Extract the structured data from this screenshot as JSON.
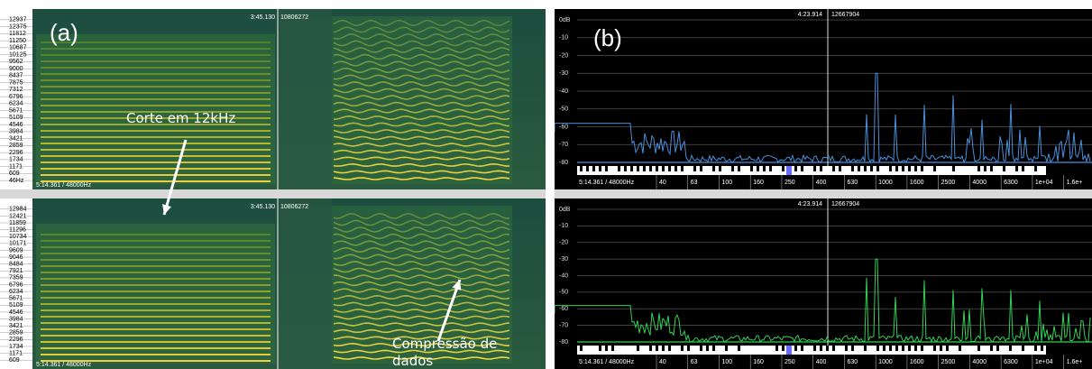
{
  "panel_a": {
    "label": "(a)",
    "top": {
      "freq_labels": [
        "12937",
        "12375",
        "11812",
        "11250",
        "10687",
        "10125",
        "9562",
        "9000",
        "8437",
        "7875",
        "7312",
        "6796",
        "6234",
        "5671",
        "5109",
        "4546",
        "3984",
        "3421",
        "2859",
        "2296",
        "1734",
        "1171",
        "609",
        "46Hz"
      ],
      "time": "3:45.130",
      "samples": "10806272",
      "position": "5:14.361 / 48000Hz"
    },
    "bottom": {
      "freq_labels": [
        "12984",
        "12421",
        "11859",
        "11296",
        "10734",
        "10171",
        "9609",
        "9046",
        "8484",
        "7921",
        "7359",
        "6796",
        "6234",
        "5671",
        "5109",
        "4546",
        "3984",
        "3421",
        "2859",
        "2296",
        "1734",
        "1171",
        "609"
      ],
      "time": "3:45.130",
      "samples": "10806272",
      "position": "5:14.361 / 48000Hz"
    },
    "annotations": {
      "cut": "Corte em 12kHz",
      "compression": "Compressão de dados"
    }
  },
  "panel_b": {
    "label": "(b)",
    "top": {
      "time": "4:23.914",
      "samples": "12667904",
      "db_labels": [
        "0dB",
        "-10",
        "-20",
        "-30",
        "-40",
        "-50",
        "-60",
        "-70",
        "-80"
      ],
      "freq_labels": [
        "40",
        "63",
        "100",
        "160",
        "250",
        "400",
        "630",
        "1000",
        "1600",
        "2500",
        "4000",
        "6300",
        "1e+04",
        "1.6e+"
      ],
      "position": "5:14.361 / 48000Hz"
    },
    "bottom": {
      "time": "4:23.914",
      "samples": "12667904",
      "db_labels": [
        "0dB",
        "-10",
        "-20",
        "-30",
        "-40",
        "-50",
        "-60",
        "-70",
        "-80"
      ],
      "freq_labels": [
        "40",
        "63",
        "100",
        "160",
        "250",
        "400",
        "630",
        "1000",
        "1600",
        "2500",
        "4000",
        "6300",
        "1e+04",
        "1.6e+"
      ],
      "position": "5:14.361 / 48000Hz"
    }
  }
}
